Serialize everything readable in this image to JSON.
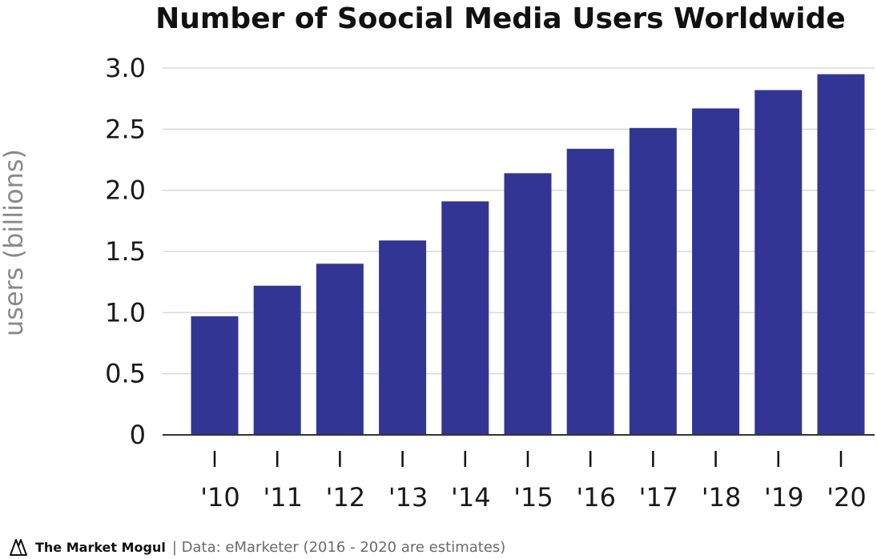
{
  "chart_data": {
    "type": "bar",
    "title": "Number of Soocial Media Users Worldwide",
    "ylabel": "users (billions)",
    "xlabel": "",
    "categories": [
      "'10",
      "'11",
      "'12",
      "'13",
      "'14",
      "'15",
      "'16",
      "'17",
      "'18",
      "'19",
      "'20"
    ],
    "values": [
      0.97,
      1.22,
      1.4,
      1.59,
      1.91,
      2.14,
      2.34,
      2.51,
      2.67,
      2.82,
      2.95
    ],
    "ylim": [
      0,
      3.0
    ],
    "yticks": [
      "0",
      "0.5",
      "1.0",
      "1.5",
      "2.0",
      "2.5",
      "3.0"
    ],
    "yticks_values": [
      0,
      0.5,
      1.0,
      1.5,
      2.0,
      2.5,
      3.0
    ],
    "grid": true,
    "legend": "none",
    "bar_color": "#333594",
    "grid_color": "#d9d9d9"
  },
  "footer": {
    "brand": "The Market Mogul",
    "source": "| Data: eMarketer (2016 - 2020 are estimates)",
    "logo_icon": "market-mogul-logo-icon"
  }
}
